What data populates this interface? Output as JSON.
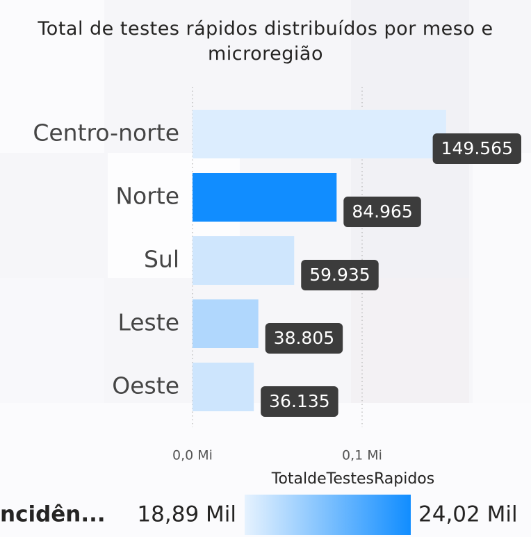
{
  "chart_data": {
    "type": "bar",
    "orientation": "horizontal",
    "title": "Total de testes rápidos distribuídos por meso e microregião",
    "categories": [
      "Centro-norte",
      "Norte",
      "Sul",
      "Leste",
      "Oeste"
    ],
    "values": [
      149565,
      84965,
      59935,
      38805,
      36135
    ],
    "value_labels": [
      "149.565",
      "84.965",
      "59.935",
      "38.805",
      "36.135"
    ],
    "colors": [
      "#dcedfe",
      "#118dff",
      "#cfe6fd",
      "#b0d7fd",
      "#cde5fd"
    ],
    "xlim": [
      0,
      200000
    ],
    "xticks": [
      {
        "value": 0,
        "label": "0,0 Mi"
      },
      {
        "value": 100000,
        "label": "0,1 Mi"
      }
    ],
    "grid": true,
    "color_scale": {
      "title": "TotaldeTestesRapidos",
      "min_label": "18,89 Mil",
      "max_label": "24,02 Mil",
      "colors": [
        "#e6f2fe",
        "#118dff"
      ]
    },
    "side_label": "ncidên..."
  }
}
